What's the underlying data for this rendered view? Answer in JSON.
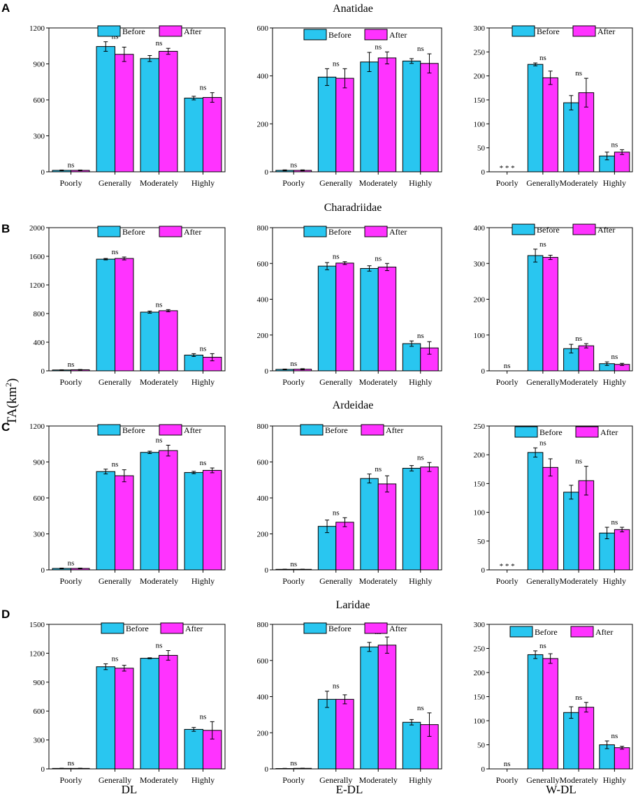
{
  "figure": {
    "y_axis_title": "TA(km",
    "y_axis_title_sup": "2",
    "y_axis_title_close": ")",
    "column_labels": [
      "DL",
      "E-DL",
      "W-DL"
    ]
  },
  "colors": {
    "before": "#29C6F0",
    "after": "#FF33FF"
  },
  "legend": {
    "before": "Before",
    "after": "After"
  },
  "chart_data": [
    {
      "type": "bar",
      "row": 0,
      "col": 0,
      "panel_letter": "A",
      "title": "Anatidae",
      "categories": [
        "Poorly",
        "Generally",
        "Moderately",
        "Highly"
      ],
      "ylim": [
        0,
        1200
      ],
      "yticks": [
        "0",
        "300",
        "600",
        "900",
        "1200"
      ],
      "series": [
        {
          "name": "Before",
          "values": [
            12,
            1045,
            945,
            615
          ],
          "errors": [
            3,
            40,
            25,
            15
          ]
        },
        {
          "name": "After",
          "values": [
            12,
            980,
            1005,
            620
          ],
          "errors": [
            3,
            60,
            25,
            40
          ]
        }
      ],
      "significance": [
        "ns",
        "ns",
        "ns",
        "ns"
      ]
    },
    {
      "type": "bar",
      "row": 0,
      "col": 1,
      "panel_letter": "",
      "title": "",
      "categories": [
        "Poorly",
        "Generally",
        "Moderately",
        "Highly"
      ],
      "ylim": [
        0,
        600
      ],
      "yticks": [
        "0",
        "200",
        "400",
        "600"
      ],
      "series": [
        {
          "name": "Before",
          "values": [
            6,
            395,
            458,
            462
          ],
          "errors": [
            2,
            35,
            40,
            10
          ]
        },
        {
          "name": "After",
          "values": [
            6,
            390,
            475,
            452
          ],
          "errors": [
            2,
            40,
            25,
            40
          ]
        }
      ],
      "significance": [
        "ns",
        "ns",
        "ns",
        "ns"
      ]
    },
    {
      "type": "bar",
      "row": 0,
      "col": 2,
      "panel_letter": "",
      "title": "",
      "categories": [
        "Poorly",
        "Generally",
        "Moderately",
        "Highly"
      ],
      "ylim": [
        0,
        300
      ],
      "yticks": [
        "0",
        "50",
        "100",
        "150",
        "200",
        "250",
        "300"
      ],
      "series": [
        {
          "name": "Before",
          "values": [
            0,
            224,
            144,
            33
          ],
          "errors": [
            0,
            3,
            15,
            8
          ]
        },
        {
          "name": "After",
          "values": [
            0,
            196,
            165,
            41
          ],
          "errors": [
            0,
            14,
            30,
            5
          ]
        }
      ],
      "significance": [
        "* * *",
        "ns",
        "ns",
        "ns"
      ]
    },
    {
      "type": "bar",
      "row": 1,
      "col": 0,
      "panel_letter": "B",
      "title": "Charadriidae",
      "categories": [
        "Poorly",
        "Generally",
        "Moderately",
        "Highly"
      ],
      "ylim": [
        0,
        2000
      ],
      "yticks": [
        "0",
        "400",
        "800",
        "1200",
        "1600",
        "2000"
      ],
      "series": [
        {
          "name": "Before",
          "values": [
            12,
            1560,
            820,
            220
          ],
          "errors": [
            3,
            10,
            15,
            20
          ]
        },
        {
          "name": "After",
          "values": [
            15,
            1570,
            840,
            190
          ],
          "errors": [
            4,
            20,
            15,
            50
          ]
        }
      ],
      "significance": [
        "ns",
        "ns",
        "ns",
        "ns"
      ]
    },
    {
      "type": "bar",
      "row": 1,
      "col": 1,
      "panel_letter": "",
      "title": "",
      "categories": [
        "Poorly",
        "Generally",
        "Moderately",
        "Highly"
      ],
      "ylim": [
        0,
        800
      ],
      "yticks": [
        "0",
        "200",
        "400",
        "600",
        "800"
      ],
      "series": [
        {
          "name": "Before",
          "values": [
            8,
            585,
            572,
            152
          ],
          "errors": [
            2,
            20,
            15,
            15
          ]
        },
        {
          "name": "After",
          "values": [
            9,
            602,
            580,
            128
          ],
          "errors": [
            3,
            8,
            20,
            35
          ]
        }
      ],
      "significance": [
        "ns",
        "ns",
        "ns",
        "ns"
      ]
    },
    {
      "type": "bar",
      "row": 1,
      "col": 2,
      "panel_letter": "",
      "title": "",
      "categories": [
        "Poorly",
        "Generally",
        "Moderately",
        "Highly"
      ],
      "ylim": [
        0,
        400
      ],
      "yticks": [
        "0",
        "100",
        "200",
        "300",
        "400"
      ],
      "series": [
        {
          "name": "Before",
          "values": [
            0,
            322,
            62,
            20
          ],
          "errors": [
            0,
            18,
            12,
            5
          ]
        },
        {
          "name": "After",
          "values": [
            0,
            317,
            70,
            18
          ],
          "errors": [
            0,
            6,
            6,
            3
          ]
        }
      ],
      "significance": [
        "ns",
        "ns",
        "ns",
        "ns"
      ]
    },
    {
      "type": "bar",
      "row": 2,
      "col": 0,
      "panel_letter": "C",
      "title": "Ardeidae",
      "categories": [
        "Poorly",
        "Generally",
        "Moderately",
        "Highly"
      ],
      "ylim": [
        0,
        1200
      ],
      "yticks": [
        "0",
        "300",
        "600",
        "900",
        "1200"
      ],
      "series": [
        {
          "name": "Before",
          "values": [
            12,
            820,
            980,
            812
          ],
          "errors": [
            3,
            20,
            10,
            10
          ]
        },
        {
          "name": "After",
          "values": [
            12,
            785,
            995,
            830
          ],
          "errors": [
            3,
            50,
            45,
            20
          ]
        }
      ],
      "significance": [
        "ns",
        "ns",
        "ns",
        "ns"
      ]
    },
    {
      "type": "bar",
      "row": 2,
      "col": 1,
      "panel_letter": "",
      "title": "",
      "categories": [
        "Poorly",
        "Generally",
        "Moderately",
        "Highly"
      ],
      "ylim": [
        0,
        800
      ],
      "yticks": [
        "0",
        "200",
        "400",
        "600",
        "800"
      ],
      "series": [
        {
          "name": "Before",
          "values": [
            3,
            242,
            508,
            565
          ],
          "errors": [
            1,
            35,
            25,
            15
          ]
        },
        {
          "name": "After",
          "values": [
            3,
            265,
            478,
            572
          ],
          "errors": [
            1,
            25,
            45,
            25
          ]
        }
      ],
      "significance": [
        "ns",
        "ns",
        "ns",
        "ns"
      ]
    },
    {
      "type": "bar",
      "row": 2,
      "col": 2,
      "panel_letter": "",
      "title": "",
      "categories": [
        "Poorly",
        "Generally",
        "Moderately",
        "Highly"
      ],
      "ylim": [
        0,
        250
      ],
      "yticks": [
        "0",
        "50",
        "100",
        "150",
        "200",
        "250"
      ],
      "series": [
        {
          "name": "Before",
          "values": [
            0,
            204,
            135,
            64
          ],
          "errors": [
            0,
            8,
            12,
            10
          ]
        },
        {
          "name": "After",
          "values": [
            0,
            178,
            155,
            70
          ],
          "errors": [
            0,
            15,
            25,
            4
          ]
        }
      ],
      "significance": [
        "* * *",
        "ns",
        "ns",
        "ns"
      ]
    },
    {
      "type": "bar",
      "row": 3,
      "col": 0,
      "panel_letter": "D",
      "title": "Laridae",
      "categories": [
        "Poorly",
        "Generally",
        "Moderately",
        "Highly"
      ],
      "ylim": [
        0,
        1500
      ],
      "yticks": [
        "0",
        "300",
        "600",
        "900",
        "1200",
        "1500"
      ],
      "series": [
        {
          "name": "Before",
          "values": [
            5,
            1060,
            1148,
            410
          ],
          "errors": [
            2,
            30,
            5,
            20
          ]
        },
        {
          "name": "After",
          "values": [
            5,
            1045,
            1178,
            400
          ],
          "errors": [
            2,
            30,
            50,
            90
          ]
        }
      ],
      "significance": [
        "ns",
        "ns",
        "ns",
        "ns"
      ]
    },
    {
      "type": "bar",
      "row": 3,
      "col": 1,
      "panel_letter": "",
      "title": "",
      "categories": [
        "Poorly",
        "Generally",
        "Moderately",
        "Highly"
      ],
      "ylim": [
        0,
        800
      ],
      "yticks": [
        "0",
        "200",
        "400",
        "600",
        "800"
      ],
      "series": [
        {
          "name": "Before",
          "values": [
            2,
            385,
            675,
            258
          ],
          "errors": [
            1,
            45,
            25,
            15
          ]
        },
        {
          "name": "After",
          "values": [
            3,
            385,
            685,
            245
          ],
          "errors": [
            1,
            25,
            45,
            65
          ]
        }
      ],
      "significance": [
        "ns",
        "ns",
        "ns",
        "ns"
      ]
    },
    {
      "type": "bar",
      "row": 3,
      "col": 2,
      "panel_letter": "",
      "title": "",
      "categories": [
        "Poorly",
        "Generally",
        "Moderately",
        "Highly"
      ],
      "ylim": [
        0,
        300
      ],
      "yticks": [
        "0",
        "50",
        "100",
        "150",
        "200",
        "250",
        "300"
      ],
      "series": [
        {
          "name": "Before",
          "values": [
            0,
            237,
            117,
            50
          ],
          "errors": [
            0,
            8,
            12,
            8
          ]
        },
        {
          "name": "After",
          "values": [
            0,
            229,
            128,
            44
          ],
          "errors": [
            0,
            10,
            10,
            3
          ]
        }
      ],
      "significance": [
        "ns",
        "ns",
        "ns",
        "ns"
      ]
    }
  ]
}
